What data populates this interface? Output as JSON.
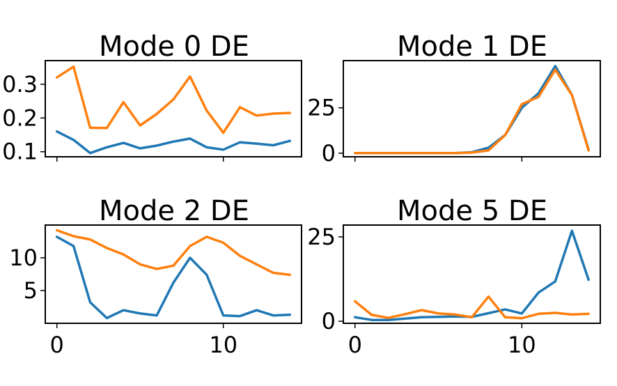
{
  "colors": {
    "series_a": "#1f77b4",
    "series_b": "#ff7f0e"
  },
  "chart_data": [
    {
      "type": "line",
      "title": "Mode 0 DE",
      "x": [
        0,
        1,
        2,
        3,
        4,
        5,
        6,
        7,
        8,
        9,
        10,
        11,
        12,
        13,
        14
      ],
      "xlim": [
        -0.7,
        14.7
      ],
      "ylim": [
        0.085,
        0.37
      ],
      "yticks": [
        0.1,
        0.2,
        0.3
      ],
      "ytick_labels": [
        "0.1",
        "0.2",
        "0.3"
      ],
      "xticks": [
        0,
        10
      ],
      "xtick_labels": [
        "",
        ""
      ],
      "series": [
        {
          "values": [
            0.16,
            0.135,
            0.096,
            0.113,
            0.126,
            0.11,
            0.118,
            0.13,
            0.139,
            0.113,
            0.106,
            0.128,
            0.124,
            0.119,
            0.132
          ]
        },
        {
          "values": [
            0.32,
            0.352,
            0.171,
            0.17,
            0.247,
            0.178,
            0.212,
            0.255,
            0.323,
            0.222,
            0.156,
            0.232,
            0.207,
            0.213,
            0.215
          ]
        }
      ]
    },
    {
      "type": "line",
      "title": "Mode 1 DE",
      "x": [
        0,
        1,
        2,
        3,
        4,
        5,
        6,
        7,
        8,
        9,
        10,
        11,
        12,
        13,
        14
      ],
      "xlim": [
        -0.7,
        14.7
      ],
      "ylim": [
        -2,
        51
      ],
      "yticks": [
        0,
        25
      ],
      "ytick_labels": [
        "0",
        "25"
      ],
      "xticks": [
        0,
        10
      ],
      "xtick_labels": [
        "",
        ""
      ],
      "series": [
        {
          "values": [
            0,
            0,
            0,
            0,
            0,
            0,
            0,
            0.5,
            3,
            10,
            25,
            33,
            48,
            32,
            2
          ]
        },
        {
          "values": [
            0,
            0,
            0,
            0,
            0,
            0,
            0,
            0.3,
            1.5,
            10,
            27,
            31,
            46,
            32,
            1.5
          ]
        }
      ]
    },
    {
      "type": "line",
      "title": "Mode 2 DE",
      "x": [
        0,
        1,
        2,
        3,
        4,
        5,
        6,
        7,
        8,
        9,
        10,
        11,
        12,
        13,
        14
      ],
      "xlim": [
        -0.7,
        14.7
      ],
      "ylim": [
        0,
        15
      ],
      "yticks": [
        5,
        10
      ],
      "ytick_labels": [
        "5",
        "10"
      ],
      "xticks": [
        0,
        10
      ],
      "xtick_labels": [
        "0",
        "10"
      ],
      "series": [
        {
          "values": [
            13.2,
            11.8,
            3.2,
            0.8,
            2.0,
            1.5,
            1.2,
            6.2,
            10.0,
            7.4,
            1.2,
            1.1,
            2.0,
            1.2,
            1.3
          ]
        },
        {
          "values": [
            14.2,
            13.3,
            12.8,
            11.5,
            10.5,
            9.0,
            8.3,
            8.8,
            11.8,
            13.2,
            12.3,
            10.3,
            9.0,
            7.7,
            7.4
          ]
        }
      ]
    },
    {
      "type": "line",
      "title": "Mode 5 DE",
      "x": [
        0,
        1,
        2,
        3,
        4,
        5,
        6,
        7,
        8,
        9,
        10,
        11,
        12,
        13,
        14
      ],
      "xlim": [
        -0.7,
        14.7
      ],
      "ylim": [
        -0.6,
        28.5
      ],
      "yticks": [
        0,
        25
      ],
      "ytick_labels": [
        "0",
        "25"
      ],
      "xticks": [
        0,
        10
      ],
      "xtick_labels": [
        "0",
        "10"
      ],
      "series": [
        {
          "values": [
            1.2,
            0.4,
            0.4,
            0.8,
            1.2,
            1.3,
            1.4,
            1.3,
            2.4,
            3.5,
            2.3,
            8.5,
            11.8,
            26.8,
            12.3
          ]
        },
        {
          "values": [
            5.9,
            1.9,
            1.0,
            2.1,
            3.3,
            2.3,
            2.0,
            1.2,
            7.3,
            1.2,
            0.9,
            2.2,
            2.5,
            2.0,
            2.2
          ]
        }
      ]
    }
  ]
}
